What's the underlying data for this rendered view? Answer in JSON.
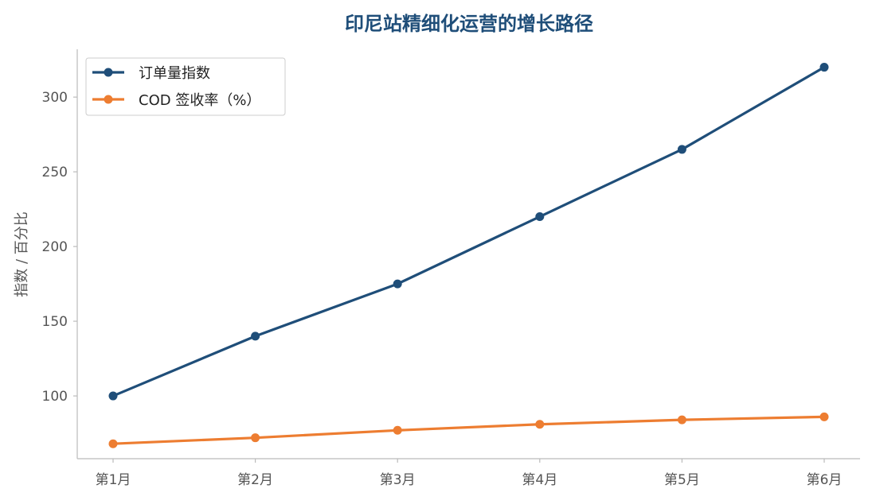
{
  "chart_data": {
    "type": "line",
    "title": "印尼站精细化运营的增长路径",
    "xlabel": "",
    "ylabel": "指数 / 百分比",
    "categories": [
      "第1月",
      "第2月",
      "第3月",
      "第4月",
      "第5月",
      "第6月"
    ],
    "series": [
      {
        "name": "订单量指数",
        "values": [
          100,
          140,
          175,
          220,
          265,
          320
        ],
        "color": "#1f4e79"
      },
      {
        "name": "COD 签收率（%）",
        "values": [
          68,
          72,
          77,
          81,
          84,
          86
        ],
        "color": "#ed7d31"
      }
    ],
    "ylim": [
      58,
      332
    ],
    "yticks": [
      100,
      150,
      200,
      250,
      300
    ],
    "grid": false,
    "legend": "top-left"
  }
}
